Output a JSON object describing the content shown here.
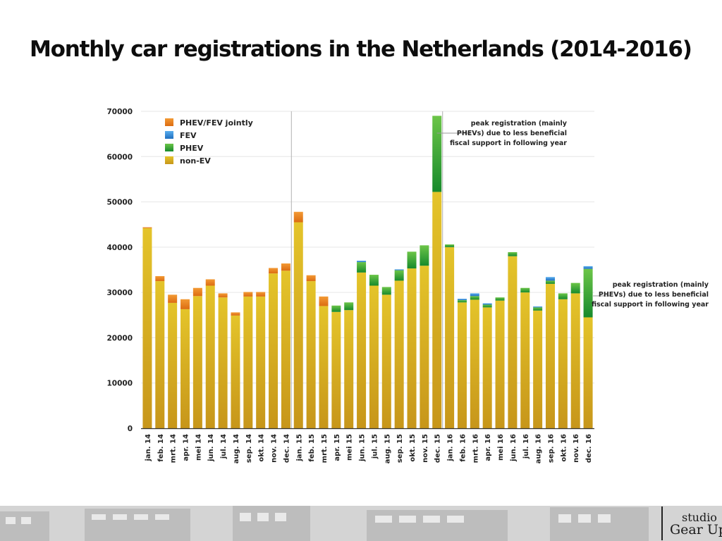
{
  "page": {
    "title": "Monthly car registrations in the Netherlands (2014-2016)",
    "brand": {
      "line1": "studio",
      "line2": "Gear Up"
    }
  },
  "chart_data": {
    "type": "bar",
    "stacked": true,
    "title": "",
    "xlabel": "",
    "ylabel": "",
    "ylim": [
      0,
      70000
    ],
    "yticks": [
      0,
      10000,
      20000,
      30000,
      40000,
      50000,
      60000,
      70000
    ],
    "grid": true,
    "legend_position": "top-left",
    "categories": [
      "jan. 14",
      "feb. 14",
      "mrt. 14",
      "apr. 14",
      "mei 14",
      "jun. 14",
      "jul. 14",
      "aug. 14",
      "sep. 14",
      "okt. 14",
      "nov. 14",
      "dec. 14",
      "jan. 15",
      "feb. 15",
      "mrt. 15",
      "apr. 15",
      "mei 15",
      "jun. 15",
      "jul. 15",
      "aug. 15",
      "sep. 15",
      "okt. 15",
      "nov. 15",
      "dec. 15",
      "jan. 16",
      "feb. 16",
      "mrt. 16",
      "apr. 16",
      "mei 16",
      "jun. 16",
      "jul. 16",
      "aug. 16",
      "sep. 16",
      "okt. 16",
      "nov. 16",
      "dec. 16"
    ],
    "series": [
      {
        "name": "non-EV",
        "color": "#d9b21e",
        "values": [
          44200,
          32500,
          27700,
          26300,
          29200,
          31500,
          28900,
          24900,
          29100,
          29100,
          34200,
          34800,
          45500,
          32500,
          27000,
          25700,
          26100,
          34400,
          31500,
          29500,
          32600,
          35300,
          35900,
          52200,
          40000,
          27800,
          28400,
          26700,
          28200,
          38000,
          30000,
          26000,
          31900,
          28500,
          29800,
          24500
        ]
      },
      {
        "name": "PHEV",
        "color": "#2e9a36",
        "values": [
          0,
          0,
          0,
          0,
          0,
          0,
          0,
          0,
          0,
          0,
          0,
          0,
          0,
          0,
          0,
          1400,
          1700,
          2300,
          2400,
          1700,
          2300,
          3700,
          4500,
          16800,
          600,
          500,
          800,
          600,
          700,
          900,
          1000,
          700,
          700,
          1300,
          2300,
          10700
        ]
      },
      {
        "name": "FEV",
        "color": "#2f86d5",
        "values": [
          0,
          0,
          0,
          0,
          0,
          0,
          0,
          0,
          0,
          0,
          0,
          0,
          0,
          0,
          0,
          0,
          0,
          300,
          0,
          0,
          200,
          0,
          0,
          0,
          0,
          300,
          600,
          300,
          0,
          0,
          0,
          200,
          800,
          0,
          0,
          600
        ]
      },
      {
        "name": "PHEV/FEV jointly",
        "color": "#e8801f",
        "values": [
          200,
          1100,
          1800,
          2200,
          1800,
          1400,
          900,
          700,
          1000,
          1000,
          1200,
          1600,
          2300,
          1300,
          2100,
          0,
          0,
          0,
          0,
          0,
          0,
          0,
          0,
          0,
          0,
          0,
          0,
          0,
          0,
          0,
          0,
          0,
          0,
          0,
          0,
          0
        ]
      }
    ],
    "legend_order": [
      "PHEV/FEV jointly",
      "FEV",
      "PHEV",
      "non-EV"
    ],
    "year_dividers_before": [
      "jan. 15",
      "jan. 16"
    ],
    "annotations": [
      {
        "id": "annotation-dec15",
        "target": "dec. 15",
        "lines": [
          "peak registration (mainly",
          "PHEVs) due to less beneficial",
          "fiscal support  in following year"
        ]
      },
      {
        "id": "annotation-dec16",
        "target": "dec. 16",
        "lines": [
          "peak registration (mainly",
          "PHEVs) due to less beneficial",
          "fiscal support  in following year"
        ]
      }
    ]
  }
}
